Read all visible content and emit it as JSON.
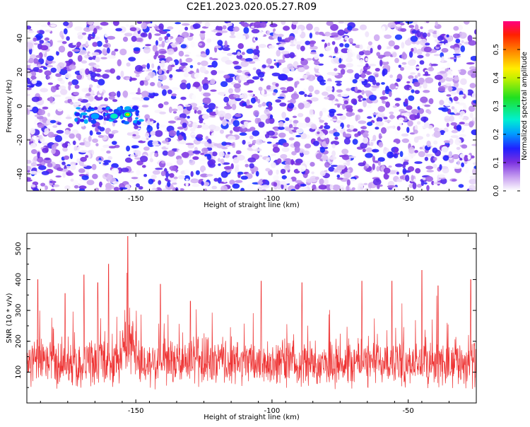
{
  "chart_data": [
    {
      "type": "heatmap",
      "title": "C2E1.2023.020.05.27.R09",
      "xlabel": "Height of straight line (km)",
      "ylabel": "Frequency (Hz)",
      "xlim": [
        -190,
        -25
      ],
      "ylim": [
        -50,
        50
      ],
      "xticks": [
        -150,
        -100,
        -50
      ],
      "yticks": [
        -40,
        -20,
        0,
        20,
        40
      ],
      "colorbar": {
        "label": "Normalized spectral amplitude",
        "range": [
          0,
          0.6
        ],
        "ticks": [
          0.0,
          0.1,
          0.2,
          0.3,
          0.4,
          0.5
        ]
      },
      "hotspots": [
        {
          "x": -153,
          "y": -5,
          "amplitude": 0.45
        },
        {
          "x": -158,
          "y": -6,
          "amplitude": 0.28
        },
        {
          "x": -165,
          "y": -6,
          "amplitude": 0.2
        },
        {
          "x": -96,
          "y": 17,
          "amplitude": 0.18
        }
      ],
      "colors": {
        "series": "#ee3333"
      }
    },
    {
      "type": "line",
      "title": "",
      "xlabel": "Height of straight line (km)",
      "ylabel": "SNR (10 * v/v)",
      "xlim": [
        -190,
        -25
      ],
      "ylim": [
        0,
        550
      ],
      "xticks": [
        -150,
        -100,
        -50
      ],
      "yticks": [
        100,
        200,
        300,
        400,
        500
      ],
      "series_stats": {
        "baseline": 130,
        "spread": 60,
        "peak_x": -153,
        "peak_y": 540
      },
      "spikes": [
        {
          "x": -186,
          "y": 400
        },
        {
          "x": -176,
          "y": 355
        },
        {
          "x": -169,
          "y": 415
        },
        {
          "x": -164,
          "y": 390
        },
        {
          "x": -160,
          "y": 450
        },
        {
          "x": -153,
          "y": 540
        },
        {
          "x": -141,
          "y": 385
        },
        {
          "x": -130,
          "y": 330
        },
        {
          "x": -104,
          "y": 395
        },
        {
          "x": -89,
          "y": 390
        },
        {
          "x": -67,
          "y": 395
        },
        {
          "x": -56,
          "y": 395
        },
        {
          "x": -45,
          "y": 430
        },
        {
          "x": -39,
          "y": 380
        },
        {
          "x": -27,
          "y": 400
        }
      ],
      "colors": {
        "series": "#ee3333"
      }
    }
  ]
}
